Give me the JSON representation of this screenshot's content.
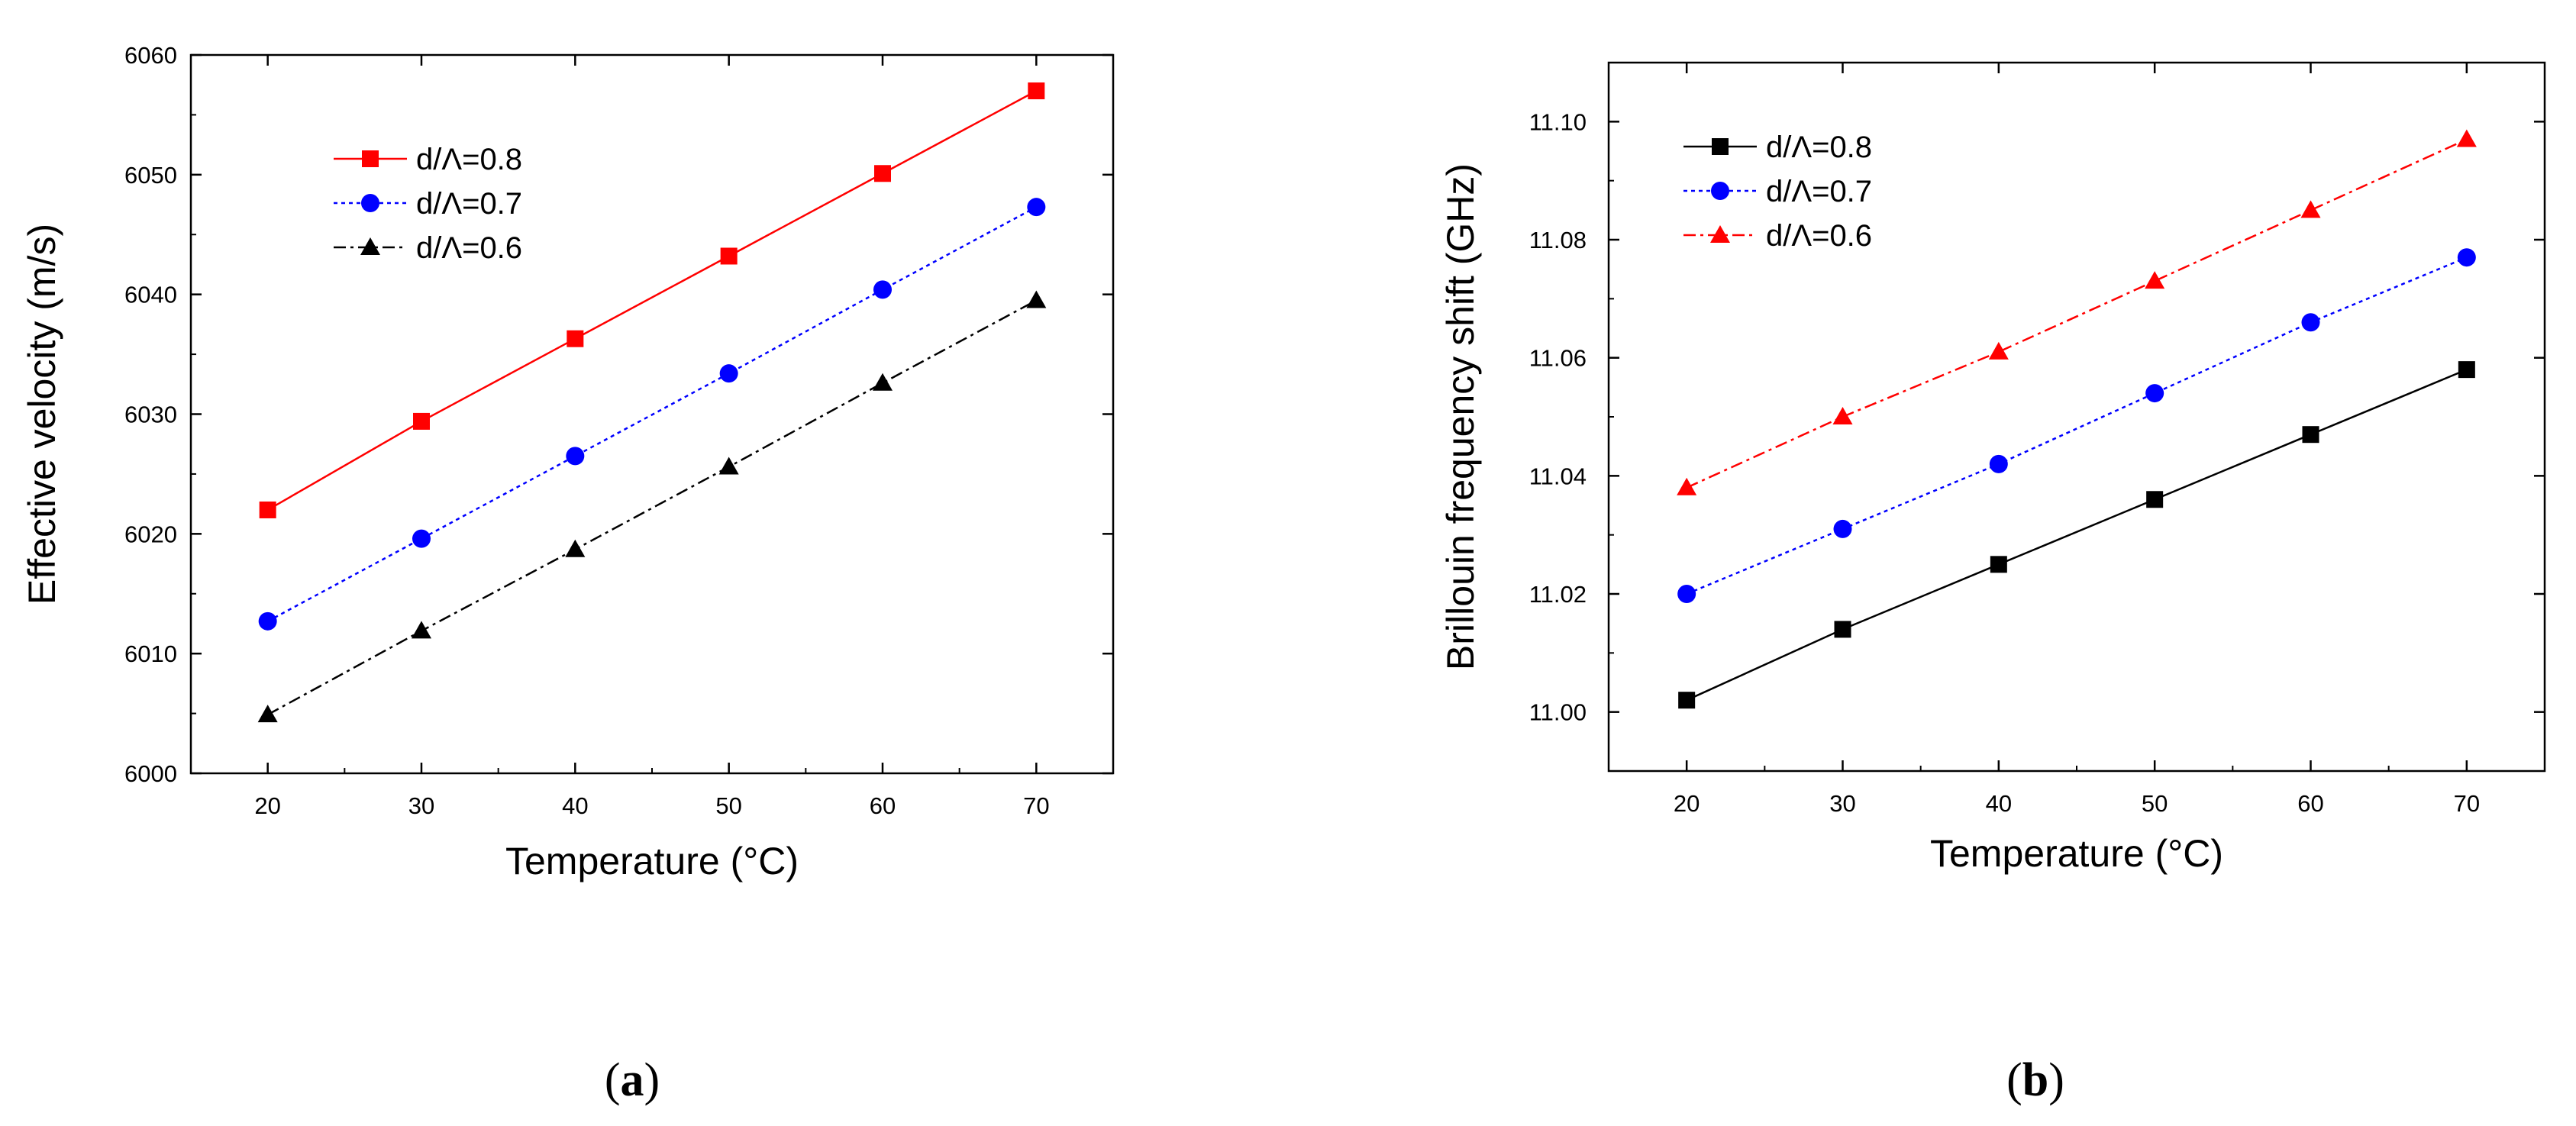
{
  "chart_data": [
    {
      "type": "line",
      "caption": "(a)",
      "caption_letter": "a",
      "xlabel": "Temperature (°C)",
      "ylabel": "Effective velocity (m/s)",
      "xlim": [
        15,
        75
      ],
      "ylim": [
        6000,
        6060
      ],
      "x_ticks": [
        20,
        30,
        40,
        50,
        60,
        70
      ],
      "y_ticks": [
        6000,
        6010,
        6020,
        6030,
        6040,
        6050,
        6060
      ],
      "x": [
        20,
        30,
        40,
        50,
        60,
        70
      ],
      "legend_position": "top-left",
      "series": [
        {
          "name": "d/Λ=0.8",
          "color": "#ff0000",
          "marker": "square",
          "line": "solid",
          "values": [
            6022.0,
            6029.4,
            6036.3,
            6043.2,
            6050.1,
            6057.0
          ]
        },
        {
          "name": "d/Λ=0.7",
          "color": "#0000ff",
          "marker": "circle",
          "line": "dotted",
          "values": [
            6012.7,
            6019.6,
            6026.5,
            6033.4,
            6040.4,
            6047.3
          ]
        },
        {
          "name": "d/Λ=0.6",
          "color": "#000000",
          "marker": "triangle",
          "line": "dashdot",
          "values": [
            6004.9,
            6011.9,
            6018.7,
            6025.6,
            6032.6,
            6039.5
          ]
        }
      ]
    },
    {
      "type": "line",
      "caption": "(b)",
      "caption_letter": "b",
      "xlabel": "Temperature (°C)",
      "ylabel": "Brillouin frequency shift (GHz)",
      "xlim": [
        15,
        75
      ],
      "ylim": [
        10.99,
        11.11
      ],
      "x_ticks": [
        20,
        30,
        40,
        50,
        60,
        70
      ],
      "y_ticks": [
        "11.00",
        "11.02",
        "11.04",
        "11.06",
        "11.08",
        "11.10"
      ],
      "x": [
        20,
        30,
        40,
        50,
        60,
        70
      ],
      "legend_position": "top-left",
      "series": [
        {
          "name": "d/Λ=0.8",
          "color": "#000000",
          "marker": "square",
          "line": "solid",
          "values": [
            11.002,
            11.014,
            11.025,
            11.036,
            11.047,
            11.058
          ]
        },
        {
          "name": "d/Λ=0.7",
          "color": "#0000ff",
          "marker": "circle",
          "line": "dotted",
          "values": [
            11.02,
            11.031,
            11.042,
            11.054,
            11.066,
            11.077
          ]
        },
        {
          "name": "d/Λ=0.6",
          "color": "#ff0000",
          "marker": "triangle",
          "line": "dashdot",
          "values": [
            11.038,
            11.05,
            11.061,
            11.073,
            11.085,
            11.097
          ]
        }
      ]
    }
  ]
}
